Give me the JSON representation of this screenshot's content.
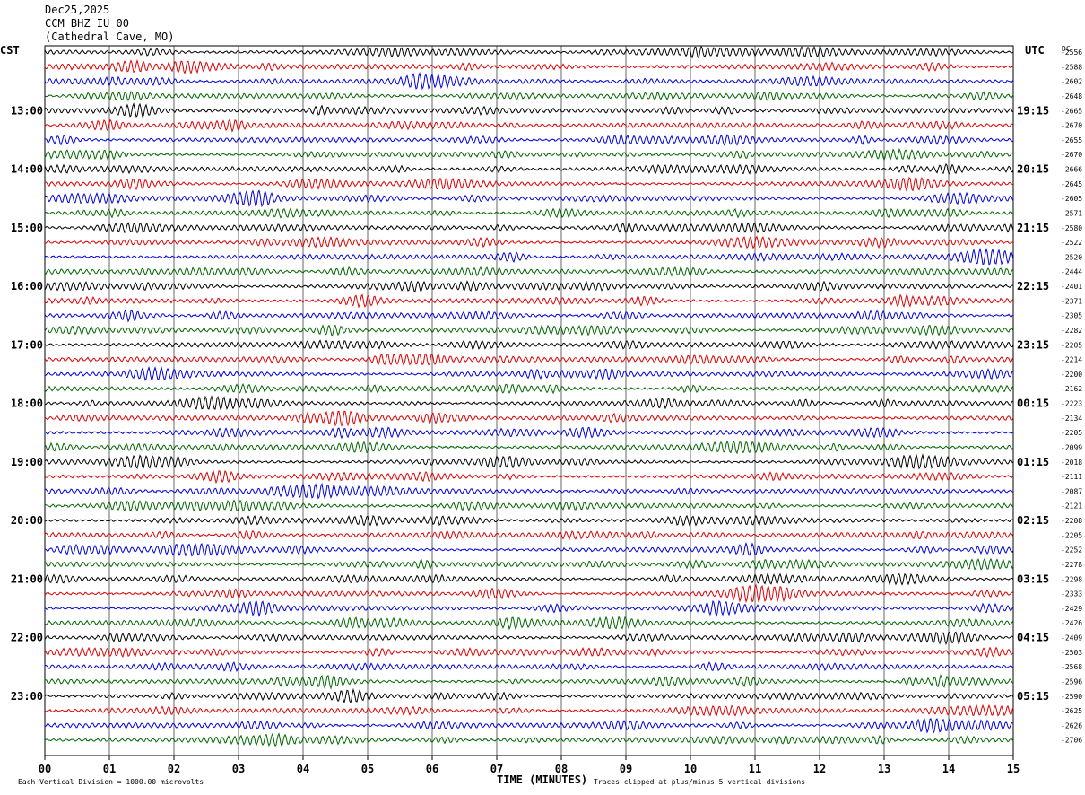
{
  "header": {
    "date": "Dec25,2025",
    "station": "CCM BHZ IU 00",
    "location": "(Cathedral Cave, MO)"
  },
  "left_zone": "CST",
  "right_zone": "UTC",
  "dc_label": "DC",
  "footer": {
    "xlabel": "TIME (MINUTES)",
    "scale_note": "Each Vertical Division = 1000.00 microvolts",
    "clip_note": "Traces clipped at plus/minus 5 vertical divisions"
  },
  "chart_data": {
    "type": "line",
    "title": "CCM BHZ IU 00",
    "xlabel": "TIME (MINUTES)",
    "x_ticks": [
      "00",
      "01",
      "02",
      "03",
      "04",
      "05",
      "06",
      "07",
      "08",
      "09",
      "10",
      "11",
      "12",
      "13",
      "14",
      "15"
    ],
    "xlim": [
      0,
      15
    ],
    "left_time_labels": [
      "13:00",
      "14:00",
      "15:00",
      "16:00",
      "17:00",
      "18:00",
      "19:00",
      "20:00",
      "21:00",
      "22:00",
      "23:00"
    ],
    "right_time_labels": [
      "19:15",
      "20:15",
      "21:15",
      "22:15",
      "23:15",
      "00:15",
      "01:15",
      "02:15",
      "03:15",
      "04:15",
      "05:15"
    ],
    "trace_colors": [
      "#000000",
      "#dd0000",
      "#0000dd",
      "#006600"
    ],
    "dc_offsets": [
      -2556,
      -2588,
      -2602,
      -2648,
      -2665,
      -2670,
      -2655,
      -2670,
      -2666,
      -2645,
      -2605,
      -2571,
      -2580,
      -2522,
      -2520,
      -2444,
      -2401,
      -2371,
      -2305,
      -2282,
      -2205,
      -2214,
      -2200,
      -2162,
      -2223,
      -2134,
      -2205,
      -2099,
      -2018,
      -2111,
      -2087,
      -2121,
      -2208,
      -2205,
      -2252,
      -2278,
      -2298,
      -2333,
      -2429,
      -2426,
      -2409,
      -2503,
      -2568,
      -2596,
      -2590,
      -2625,
      -2626,
      -2706
    ],
    "grid": true
  }
}
